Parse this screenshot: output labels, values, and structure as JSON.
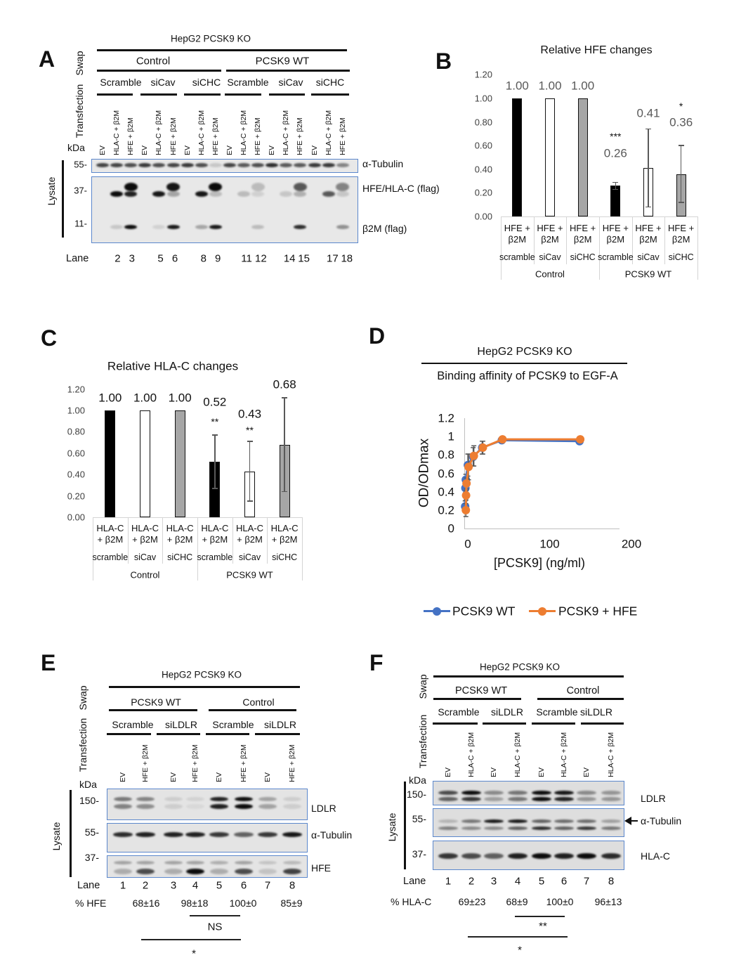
{
  "panels": {
    "a": {
      "letter": "A",
      "header": "HepG2 PCSK9 KO",
      "swap_label": "Swap",
      "transfection_label": "Transfection",
      "kda_label": "kDa",
      "lysate_label": "Lysate",
      "swap_groups": [
        "Control",
        "PCSK9 WT"
      ],
      "transfection_groups": [
        "Scramble",
        "siCav",
        "siCHC",
        "Scramble",
        "siCav",
        "siCHC"
      ],
      "lane_headers": [
        "EV",
        "HLA-C + β2M",
        "HFE + β2M",
        "EV",
        "HLA-C + β2M",
        "HFE + β2M",
        "EV",
        "HLA-C + β2M",
        "HFE + β2M",
        "EV",
        "HLA-C + β2M",
        "HFE + β2M",
        "EV",
        "HLA-C + β2M",
        "HFE + β2M",
        "EV",
        "HLA-C + β2M",
        "HFE + β2M"
      ],
      "markers": [
        "55-",
        "37-",
        "11-"
      ],
      "blot_labels": [
        "α-Tubulin",
        "HFE/HLA-C (flag)",
        "β2M (flag)"
      ],
      "lane_title": "Lane",
      "lane_numbers": [
        "2",
        "3",
        "5",
        "6",
        "8",
        "9",
        "11",
        "12",
        "14",
        "15",
        "17",
        "18"
      ],
      "bands": {
        "alpha_tubulin": [
          0.75,
          0.75,
          0.7,
          0.8,
          0.7,
          0.75,
          0.8,
          0.7,
          0.15,
          0.75,
          0.65,
          0.7,
          0.85,
          0.65,
          0.65,
          0.8,
          0.8,
          0.45
        ],
        "flag_37_upper": [
          0,
          0,
          1,
          0,
          0,
          0.95,
          0,
          0,
          1,
          0,
          0,
          0.2,
          0,
          0,
          0.65,
          0,
          0,
          0.45
        ],
        "flag_37_lower": [
          0,
          1,
          0.9,
          0,
          0.95,
          0.3,
          0,
          0.95,
          0.2,
          0,
          0.2,
          0.1,
          0,
          0.15,
          0.25,
          0,
          0.65,
          0.15
        ],
        "flag_11": [
          0,
          0.15,
          1,
          0,
          0.1,
          0.95,
          0,
          0.3,
          0.95,
          0,
          0,
          0.2,
          0,
          0,
          0.85,
          0,
          0,
          0.4
        ]
      }
    },
    "b": {
      "letter": "B"
    },
    "c": {
      "letter": "C"
    },
    "d": {
      "letter": "D"
    },
    "e": {
      "letter": "E",
      "header": "HepG2 PCSK9 KO",
      "swap_label": "Swap",
      "transfection_label": "Transfection",
      "kda_label": "kDa",
      "lysate_label": "Lysate",
      "swap_groups": [
        "PCSK9 WT",
        "Control"
      ],
      "transfection_groups": [
        "Scramble",
        "siLDLR",
        "Scramble",
        "siLDLR"
      ],
      "lane_headers": [
        "EV",
        "HFE + β2M",
        "EV",
        "HFE + β2M",
        "EV",
        "HFE + β2M",
        "EV",
        "HFE + β2M"
      ],
      "markers": [
        "150-",
        "55-",
        "37-"
      ],
      "blot_labels": [
        "LDLR",
        "α-Tubulin",
        "HFE"
      ],
      "lane_title": "Lane",
      "lane_numbers": [
        "1",
        "2",
        "3",
        "4",
        "5",
        "6",
        "7",
        "8"
      ],
      "quant_label": "% HFE",
      "quant_values": [
        "68±16",
        "98±18",
        "100±0",
        "85±9"
      ],
      "comparisons": [
        {
          "label": "NS"
        },
        {
          "label": "*"
        }
      ],
      "bands": {
        "ldlr_upper": [
          0.5,
          0.45,
          0.1,
          0.08,
          0.9,
          1,
          0.3,
          0.1
        ],
        "ldlr_lower": [
          0.45,
          0.4,
          0.1,
          0.05,
          0.9,
          1,
          0.3,
          0.1
        ],
        "alpha_tubulin": [
          0.85,
          0.9,
          0.9,
          0.9,
          0.8,
          0.6,
          0.8,
          0.95
        ],
        "hfe_upper": [
          0.3,
          0.3,
          0.3,
          0.3,
          0.25,
          0.3,
          0.15,
          0.2
        ],
        "hfe": [
          0.25,
          0.7,
          0.25,
          1,
          0.25,
          0.7,
          0.15,
          0.75
        ]
      }
    },
    "f": {
      "letter": "F",
      "header": "HepG2 PCSK9 KO",
      "swap_label": "Swap",
      "transfection_label": "Transfection",
      "kda_label": "kDa",
      "lysate_label": "Lysate",
      "swap_groups": [
        "PCSK9 WT",
        "Control"
      ],
      "transfection_groups": [
        "Scramble",
        "siLDLR",
        "Scramble",
        "siLDLR"
      ],
      "lane_headers": [
        "EV",
        "HLA-C + β2M",
        "EV",
        "HLA-C + β2M",
        "EV",
        "HLA-C + β2M",
        "EV",
        "HLA-C + β2M"
      ],
      "markers": [
        "150-",
        "55-",
        "37-"
      ],
      "blot_labels": [
        "LDLR",
        "α-Tubulin",
        "HLA-C"
      ],
      "arrow_icon": "arrow-left-icon",
      "lane_title": "Lane",
      "lane_numbers": [
        "1",
        "2",
        "3",
        "4",
        "5",
        "6",
        "7",
        "8"
      ],
      "quant_label": "% HLA-C",
      "quant_values": [
        "69±23",
        "68±9",
        "100±0",
        "96±13"
      ],
      "comparisons": [
        {
          "label": "**"
        },
        {
          "label": "*"
        }
      ],
      "bands": {
        "ldlr_upper": [
          0.7,
          1,
          0.4,
          0.5,
          1,
          0.95,
          0.4,
          0.35
        ],
        "ldlr_lower": [
          0.6,
          0.8,
          0.3,
          0.5,
          1,
          0.9,
          0.35,
          0.35
        ],
        "alpha_tubulin_upper": [
          0.2,
          0.5,
          0.95,
          0.95,
          0.6,
          0.55,
          0.55,
          0.3
        ],
        "alpha_tubulin_lower": [
          0.45,
          0.4,
          0.4,
          0.6,
          0.85,
          0.6,
          0.8,
          0.5
        ],
        "hla_c": [
          0.8,
          0.7,
          0.6,
          0.9,
          1,
          0.9,
          1,
          0.85
        ]
      }
    }
  },
  "chart_data": [
    {
      "panel": "B",
      "type": "bar",
      "title": "Relative HFE changes",
      "xlabel": "",
      "ylabel": "",
      "categories": [
        "HFE +\nβ2M",
        "HFE +\nβ2M",
        "HFE +\nβ2M",
        "HFE +\nβ2M",
        "HFE +\nβ2M",
        "HFE +\nβ2M"
      ],
      "subgroups": [
        "scramble",
        "siCav",
        "siCHC",
        "scramble",
        "siCav",
        "siCHC"
      ],
      "groups": [
        "Control",
        "PCSK9 WT"
      ],
      "values": [
        1.0,
        1.0,
        1.0,
        0.26,
        0.41,
        0.36
      ],
      "errors": [
        0,
        0,
        0,
        0.03,
        0.33,
        0.24
      ],
      "value_labels": [
        "1.00",
        "1.00",
        "1.00",
        "0.26",
        "0.41",
        "0.36"
      ],
      "significance": [
        "",
        "",
        "",
        "***",
        "",
        "*"
      ],
      "bar_colors": [
        "#000000",
        "#ffffff",
        "#a6a6a6",
        "#000000",
        "#ffffff",
        "#a6a6a6"
      ],
      "label_color": "#595959",
      "yticks": [
        0,
        0.2,
        0.4,
        0.6,
        0.8,
        1.0,
        1.2
      ],
      "ytick_labels": [
        "0.00",
        "0.20",
        "0.40",
        "0.60",
        "0.80",
        "1.00",
        "1.20"
      ],
      "ylim": [
        0,
        1.2
      ]
    },
    {
      "panel": "C",
      "type": "bar",
      "title": "Relative HLA-C changes",
      "xlabel": "",
      "ylabel": "",
      "categories": [
        "HLA-C\n+ β2M",
        "HLA-C\n+ β2M",
        "HLA-C\n+ β2M",
        "HLA-C\n+ β2M",
        "HLA-C\n+ β2M",
        "HLA-C\n+ β2M"
      ],
      "subgroups": [
        "scramble",
        "siCav",
        "siCHC",
        "scramble",
        "siCav",
        "siCHC"
      ],
      "groups": [
        "Control",
        "PCSK9 WT"
      ],
      "values": [
        1.0,
        1.0,
        1.0,
        0.52,
        0.43,
        0.68
      ],
      "errors": [
        0,
        0,
        0,
        0.25,
        0.28,
        0.44
      ],
      "value_labels": [
        "1.00",
        "1.00",
        "1.00",
        "0.52",
        "0.43",
        "0.68"
      ],
      "significance": [
        "",
        "",
        "",
        "**",
        "**",
        ""
      ],
      "bar_colors": [
        "#000000",
        "#ffffff",
        "#a6a6a6",
        "#000000",
        "#ffffff",
        "#a6a6a6"
      ],
      "label_color": "#111111",
      "yticks": [
        0,
        0.2,
        0.4,
        0.6,
        0.8,
        1.0,
        1.2
      ],
      "ytick_labels": [
        "0.00",
        "0.20",
        "0.40",
        "0.60",
        "0.80",
        "1.00",
        "1.20"
      ],
      "ylim": [
        0,
        1.2
      ]
    },
    {
      "panel": "D",
      "type": "line",
      "header": "HepG2 PCSK9 KO",
      "title": "Binding affinity of PCSK9 to EGF-A",
      "xlabel": "[PCSK9] (ng/ml)",
      "ylabel": "OD/ODmax",
      "xlim": [
        0,
        200
      ],
      "ylim": [
        0,
        1.2
      ],
      "xticks": [
        0,
        100,
        200
      ],
      "xtick_labels": [
        "0",
        "100",
        "200"
      ],
      "yticks": [
        0,
        0.2,
        0.4,
        0.6,
        0.8,
        1,
        1.2
      ],
      "ytick_labels": [
        "0",
        "0.2",
        "0.4",
        "0.6",
        "0.8",
        "1",
        "1.2"
      ],
      "grid": false,
      "legend": "bottom",
      "x": [
        0.2,
        0.5,
        1,
        3.5,
        10,
        21,
        45,
        140
      ],
      "series": [
        {
          "name": "PCSK9 WT",
          "color": "#4472c4",
          "values": [
            0.24,
            0.44,
            0.53,
            0.69,
            0.78,
            0.88,
            0.96,
            0.95
          ],
          "errors": [
            0.06,
            0.05,
            0.06,
            0.12,
            0.1,
            0.07,
            0.02,
            0.02
          ]
        },
        {
          "name": "PCSK9 + HFE",
          "color": "#ed7d31",
          "values": [
            0.2,
            0.36,
            0.49,
            0.67,
            0.79,
            0.88,
            0.97,
            0.97
          ],
          "errors": [
            0.07,
            0.05,
            0.06,
            0.14,
            0.11,
            0.07,
            0.02,
            0.02
          ]
        }
      ]
    }
  ]
}
